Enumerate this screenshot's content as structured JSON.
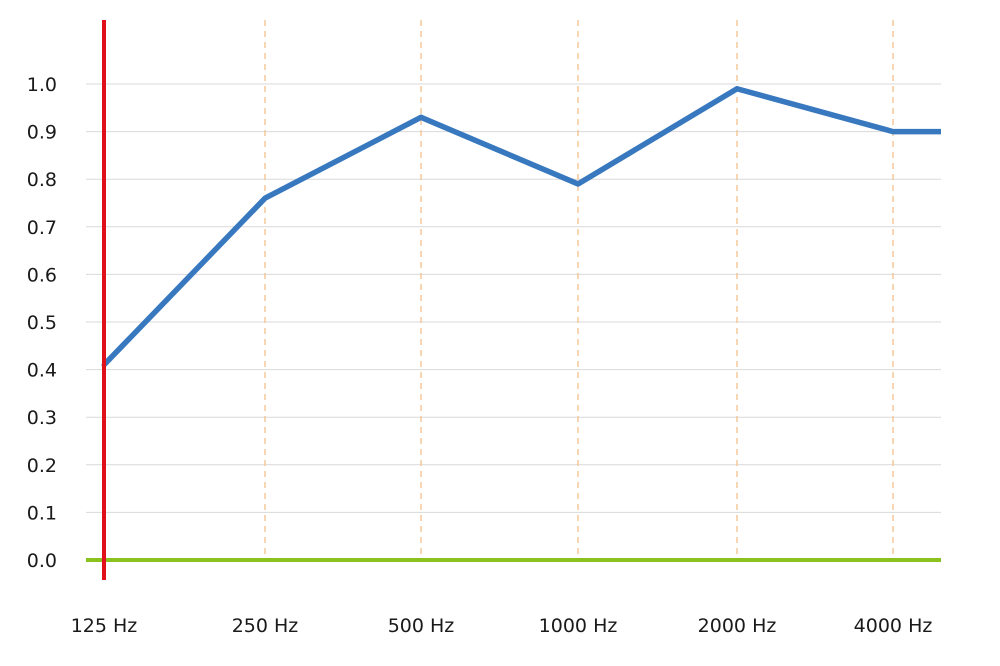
{
  "chart_data": {
    "type": "line",
    "categories": [
      "125 Hz",
      "250 Hz",
      "500 Hz",
      "1000 Hz",
      "2000 Hz",
      "4000 Hz"
    ],
    "series": [
      {
        "values": [
          0.41,
          0.76,
          0.93,
          0.79,
          0.99,
          0.9
        ]
      }
    ],
    "trailing_value": 0.9,
    "y_ticks": [
      "0.0",
      "0.1",
      "0.2",
      "0.3",
      "0.4",
      "0.5",
      "0.6",
      "0.7",
      "0.8",
      "0.9",
      "1.0"
    ],
    "ylim": [
      0.0,
      1.0
    ],
    "grid": true,
    "colors": {
      "line": "#3878bf",
      "y_axis": "#e0101a",
      "x_axis": "#8cc21e",
      "grid": "#d9d9d9",
      "category_guides": "#f5c79a"
    }
  }
}
